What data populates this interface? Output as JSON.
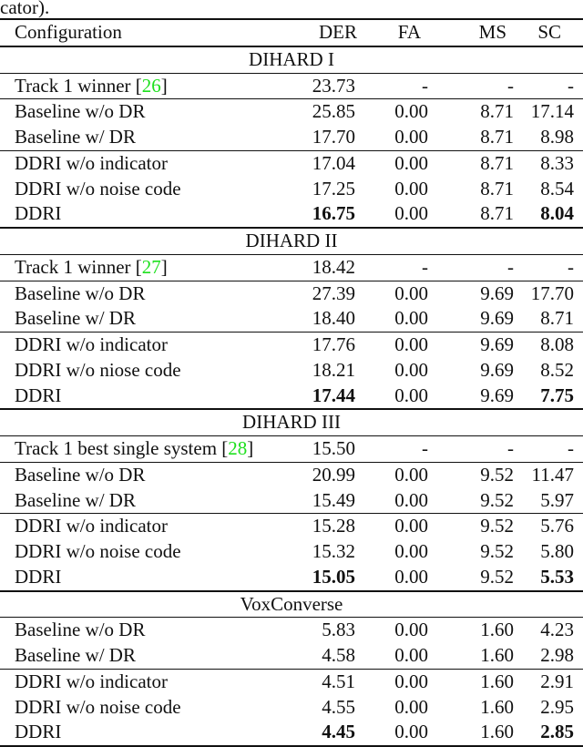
{
  "caption": "cator).",
  "headers": [
    "Configuration",
    "DER",
    "FA",
    "MS",
    "SC"
  ],
  "sections": [
    {
      "title": "DIHARD I",
      "rows": [
        {
          "config": "Track 1 winner [",
          "cite": "26",
          "values": [
            "23.73",
            "-",
            "-",
            "-"
          ],
          "rule": true
        },
        {
          "config": "Baseline w/o DR",
          "values": [
            "25.85",
            "0.00",
            "8.71",
            "17.14"
          ]
        },
        {
          "config": "Baseline w/ DR",
          "values": [
            "17.70",
            "0.00",
            "8.71",
            "8.98"
          ],
          "rule": true
        },
        {
          "config": "DDRI w/o indicator",
          "values": [
            "17.04",
            "0.00",
            "8.71",
            "8.33"
          ]
        },
        {
          "config": "DDRI w/o noise code",
          "values": [
            "17.25",
            "0.00",
            "8.71",
            "8.54"
          ]
        },
        {
          "config": "DDRI",
          "values": [
            "16.75",
            "0.00",
            "8.71",
            "8.04"
          ],
          "bold": [
            0,
            3
          ]
        }
      ]
    },
    {
      "title": "DIHARD II",
      "rows": [
        {
          "config": "Track 1 winner [",
          "cite": "27",
          "values": [
            "18.42",
            "-",
            "-",
            "-"
          ],
          "rule": true
        },
        {
          "config": "Baseline w/o DR",
          "values": [
            "27.39",
            "0.00",
            "9.69",
            "17.70"
          ]
        },
        {
          "config": "Baseline w/ DR",
          "values": [
            "18.40",
            "0.00",
            "9.69",
            "8.71"
          ],
          "rule": true
        },
        {
          "config": "DDRI w/o indicator",
          "values": [
            "17.76",
            "0.00",
            "9.69",
            "8.08"
          ]
        },
        {
          "config": "DDRI w/o niose code",
          "values": [
            "18.21",
            "0.00",
            "9.69",
            "8.52"
          ]
        },
        {
          "config": "DDRI",
          "values": [
            "17.44",
            "0.00",
            "9.69",
            "7.75"
          ],
          "bold": [
            0,
            3
          ]
        }
      ]
    },
    {
      "title": "DIHARD III",
      "rows": [
        {
          "config": "Track 1 best single system [",
          "cite": "28",
          "values": [
            "15.50",
            "-",
            "-",
            "-"
          ],
          "rule": true
        },
        {
          "config": "Baseline w/o DR",
          "values": [
            "20.99",
            "0.00",
            "9.52",
            "11.47"
          ]
        },
        {
          "config": "Baseline w/ DR",
          "values": [
            "15.49",
            "0.00",
            "9.52",
            "5.97"
          ],
          "rule": true
        },
        {
          "config": "DDRI w/o indicator",
          "values": [
            "15.28",
            "0.00",
            "9.52",
            "5.76"
          ]
        },
        {
          "config": "DDRI w/o noise code",
          "values": [
            "15.32",
            "0.00",
            "9.52",
            "5.80"
          ]
        },
        {
          "config": "DDRI",
          "values": [
            "15.05",
            "0.00",
            "9.52",
            "5.53"
          ],
          "bold": [
            0,
            3
          ]
        }
      ]
    },
    {
      "title": "VoxConverse",
      "rows": [
        {
          "config": "Baseline w/o DR",
          "values": [
            "5.83",
            "0.00",
            "1.60",
            "4.23"
          ]
        },
        {
          "config": "Baseline w/ DR",
          "values": [
            "4.58",
            "0.00",
            "1.60",
            "2.98"
          ],
          "rule": true
        },
        {
          "config": "DDRI w/o indicator",
          "values": [
            "4.51",
            "0.00",
            "1.60",
            "2.91"
          ]
        },
        {
          "config": "DDRI w/o noise code",
          "values": [
            "4.55",
            "0.00",
            "1.60",
            "2.95"
          ]
        },
        {
          "config": "DDRI",
          "values": [
            "4.45",
            "0.00",
            "1.60",
            "2.85"
          ],
          "bold": [
            0,
            3
          ]
        }
      ]
    }
  ]
}
